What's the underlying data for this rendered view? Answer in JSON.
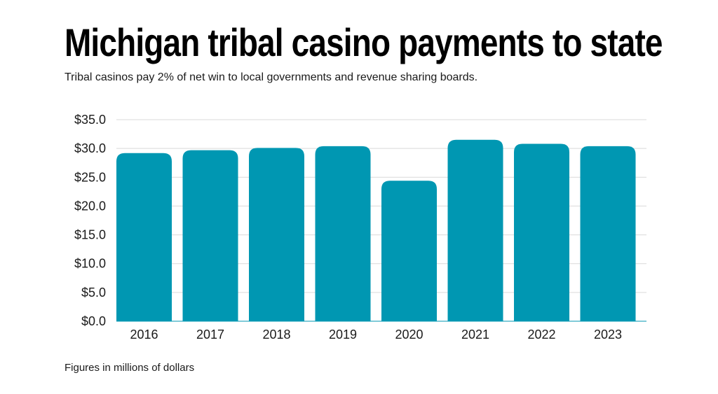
{
  "title": "Michigan tribal casino payments to state",
  "subtitle": "Tribal casinos pay 2% of net win to local governments and revenue sharing boards.",
  "footnote": "Figures in millions of dollars",
  "colors": {
    "bar": "#0097b2",
    "grid": "#d9d9d9",
    "text": "#1a1a1a"
  },
  "chart_data": {
    "type": "bar",
    "categories": [
      "2016",
      "2017",
      "2018",
      "2019",
      "2020",
      "2021",
      "2022",
      "2023"
    ],
    "values": [
      29.2,
      29.7,
      30.1,
      30.4,
      24.4,
      31.5,
      30.8,
      30.4
    ],
    "title": "Michigan tribal casino payments to state",
    "xlabel": "",
    "ylabel": "",
    "ylim": [
      0,
      35
    ],
    "yticks": [
      "$0.0",
      "$5.0",
      "$10.0",
      "$15.0",
      "$20.0",
      "$25.0",
      "$30.0",
      "$35.0"
    ],
    "grid": true,
    "legend": "none"
  }
}
